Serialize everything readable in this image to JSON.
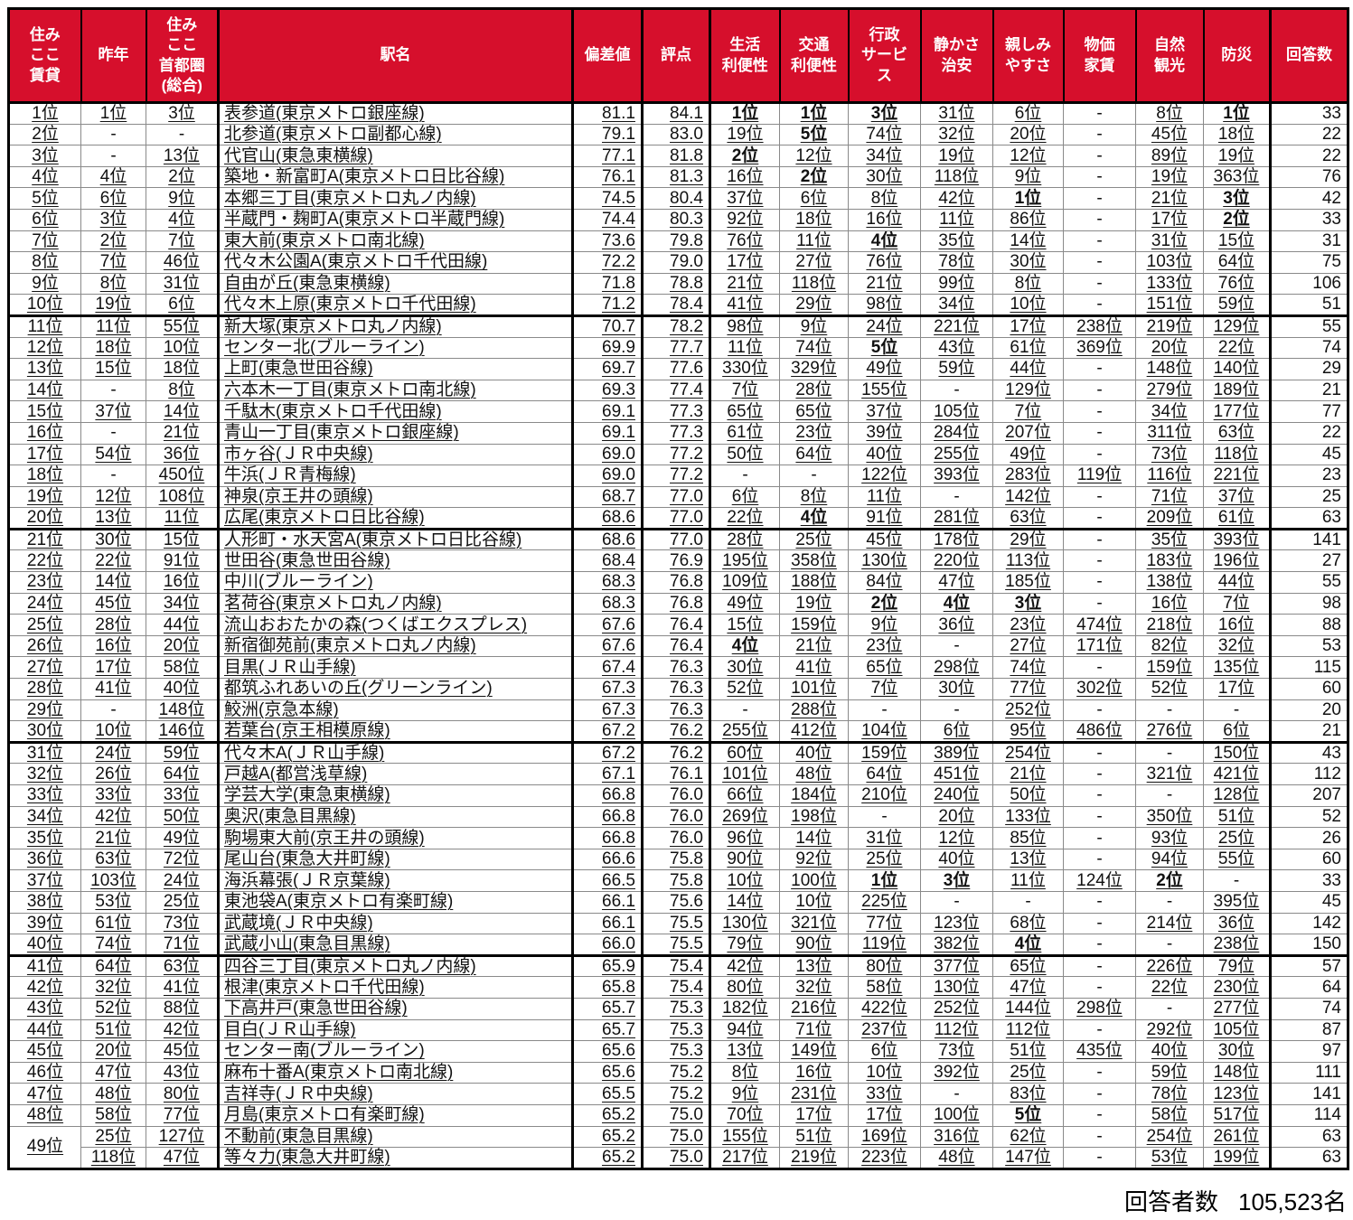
{
  "colors": {
    "header_bg": "#D60F2C",
    "header_text": "#ffffff",
    "thick_border": "#000000",
    "thin_border": "#8a8a8a"
  },
  "footer": {
    "label": "回答者数",
    "value": "105,523名"
  },
  "table": {
    "columns": [
      "住み\nここ\n賃貸",
      "昨年",
      "住み\nここ\n首都圏\n(総合)",
      "駅名",
      "偏差値",
      "評点",
      "生活\n利便性",
      "交通\n利便性",
      "行政\nサービ\nス",
      "静かさ\n治安",
      "親しみ\nやすさ",
      "物価\n家賃",
      "自然\n観光",
      "防災",
      "回答数"
    ],
    "rowspans": {
      "48": 2
    },
    "rows": [
      [
        "1位",
        "1位",
        "3位",
        "表参道(東京メトロ銀座線)",
        "81.1",
        "84.1",
        "1位",
        "1位",
        "3位",
        "31位",
        "6位",
        "-",
        "8位",
        "1位",
        "33"
      ],
      [
        "2位",
        "-",
        "-",
        "北参道(東京メトロ副都心線)",
        "79.1",
        "83.0",
        "19位",
        "5位",
        "74位",
        "32位",
        "20位",
        "-",
        "45位",
        "18位",
        "22"
      ],
      [
        "3位",
        "-",
        "13位",
        "代官山(東急東横線)",
        "77.1",
        "81.8",
        "2位",
        "12位",
        "34位",
        "19位",
        "12位",
        "-",
        "89位",
        "19位",
        "22"
      ],
      [
        "4位",
        "4位",
        "2位",
        "築地・新富町A(東京メトロ日比谷線)",
        "76.1",
        "81.3",
        "16位",
        "2位",
        "30位",
        "118位",
        "9位",
        "-",
        "19位",
        "363位",
        "76"
      ],
      [
        "5位",
        "6位",
        "9位",
        "本郷三丁目(東京メトロ丸ノ内線)",
        "74.5",
        "80.4",
        "37位",
        "6位",
        "8位",
        "42位",
        "1位",
        "-",
        "21位",
        "3位",
        "42"
      ],
      [
        "6位",
        "3位",
        "4位",
        "半蔵門・麹町A(東京メトロ半蔵門線)",
        "74.4",
        "80.3",
        "92位",
        "18位",
        "16位",
        "11位",
        "86位",
        "-",
        "17位",
        "2位",
        "33"
      ],
      [
        "7位",
        "2位",
        "7位",
        "東大前(東京メトロ南北線)",
        "73.6",
        "79.8",
        "76位",
        "11位",
        "4位",
        "35位",
        "14位",
        "-",
        "31位",
        "15位",
        "31"
      ],
      [
        "8位",
        "7位",
        "46位",
        "代々木公園A(東京メトロ千代田線)",
        "72.2",
        "79.0",
        "17位",
        "27位",
        "76位",
        "78位",
        "30位",
        "-",
        "103位",
        "64位",
        "75"
      ],
      [
        "9位",
        "8位",
        "31位",
        "自由が丘(東急東横線)",
        "71.8",
        "78.8",
        "21位",
        "118位",
        "21位",
        "99位",
        "8位",
        "-",
        "133位",
        "76位",
        "106"
      ],
      [
        "10位",
        "19位",
        "6位",
        "代々木上原(東京メトロ千代田線)",
        "71.2",
        "78.4",
        "41位",
        "29位",
        "98位",
        "34位",
        "10位",
        "-",
        "151位",
        "59位",
        "51"
      ],
      [
        "11位",
        "11位",
        "55位",
        "新大塚(東京メトロ丸ノ内線)",
        "70.7",
        "78.2",
        "98位",
        "9位",
        "24位",
        "221位",
        "17位",
        "238位",
        "219位",
        "129位",
        "55"
      ],
      [
        "12位",
        "18位",
        "10位",
        "センター北(ブルーライン)",
        "69.9",
        "77.7",
        "11位",
        "74位",
        "5位",
        "43位",
        "61位",
        "369位",
        "20位",
        "22位",
        "74"
      ],
      [
        "13位",
        "15位",
        "18位",
        "上町(東急世田谷線)",
        "69.7",
        "77.6",
        "330位",
        "329位",
        "49位",
        "59位",
        "44位",
        "-",
        "148位",
        "140位",
        "29"
      ],
      [
        "14位",
        "-",
        "8位",
        "六本木一丁目(東京メトロ南北線)",
        "69.3",
        "77.4",
        "7位",
        "28位",
        "155位",
        "-",
        "129位",
        "-",
        "279位",
        "189位",
        "21"
      ],
      [
        "15位",
        "37位",
        "14位",
        "千駄木(東京メトロ千代田線)",
        "69.1",
        "77.3",
        "65位",
        "65位",
        "37位",
        "105位",
        "7位",
        "-",
        "34位",
        "177位",
        "77"
      ],
      [
        "16位",
        "-",
        "21位",
        "青山一丁目(東京メトロ銀座線)",
        "69.1",
        "77.3",
        "61位",
        "23位",
        "39位",
        "284位",
        "207位",
        "-",
        "311位",
        "63位",
        "22"
      ],
      [
        "17位",
        "54位",
        "36位",
        "市ヶ谷(ＪＲ中央線)",
        "69.0",
        "77.2",
        "50位",
        "64位",
        "40位",
        "255位",
        "49位",
        "-",
        "73位",
        "118位",
        "45"
      ],
      [
        "18位",
        "-",
        "450位",
        "牛浜(ＪＲ青梅線)",
        "69.0",
        "77.2",
        "-",
        "-",
        "122位",
        "393位",
        "283位",
        "119位",
        "116位",
        "221位",
        "23"
      ],
      [
        "19位",
        "12位",
        "108位",
        "神泉(京王井の頭線)",
        "68.7",
        "77.0",
        "6位",
        "8位",
        "11位",
        "-",
        "142位",
        "-",
        "71位",
        "37位",
        "25"
      ],
      [
        "20位",
        "13位",
        "11位",
        "広尾(東京メトロ日比谷線)",
        "68.6",
        "77.0",
        "22位",
        "4位",
        "91位",
        "281位",
        "63位",
        "-",
        "209位",
        "61位",
        "63"
      ],
      [
        "21位",
        "30位",
        "15位",
        "人形町・水天宮A(東京メトロ日比谷線)",
        "68.6",
        "77.0",
        "28位",
        "25位",
        "45位",
        "178位",
        "29位",
        "-",
        "35位",
        "393位",
        "141"
      ],
      [
        "22位",
        "22位",
        "91位",
        "世田谷(東急世田谷線)",
        "68.4",
        "76.9",
        "195位",
        "358位",
        "130位",
        "220位",
        "113位",
        "-",
        "183位",
        "196位",
        "27"
      ],
      [
        "23位",
        "14位",
        "16位",
        "中川(ブルーライン)",
        "68.3",
        "76.8",
        "109位",
        "188位",
        "84位",
        "47位",
        "185位",
        "-",
        "138位",
        "44位",
        "55"
      ],
      [
        "24位",
        "45位",
        "34位",
        "茗荷谷(東京メトロ丸ノ内線)",
        "68.3",
        "76.8",
        "49位",
        "19位",
        "2位",
        "4位",
        "3位",
        "-",
        "16位",
        "7位",
        "98"
      ],
      [
        "25位",
        "28位",
        "44位",
        "流山おおたかの森(つくばエクスプレス)",
        "67.6",
        "76.4",
        "15位",
        "159位",
        "9位",
        "36位",
        "23位",
        "474位",
        "218位",
        "16位",
        "88"
      ],
      [
        "26位",
        "16位",
        "20位",
        "新宿御苑前(東京メトロ丸ノ内線)",
        "67.6",
        "76.4",
        "4位",
        "21位",
        "23位",
        "-",
        "27位",
        "171位",
        "82位",
        "32位",
        "53"
      ],
      [
        "27位",
        "17位",
        "58位",
        "目黒(ＪＲ山手線)",
        "67.4",
        "76.3",
        "30位",
        "41位",
        "65位",
        "298位",
        "74位",
        "-",
        "159位",
        "135位",
        "115"
      ],
      [
        "28位",
        "41位",
        "40位",
        "都筑ふれあいの丘(グリーンライン)",
        "67.3",
        "76.3",
        "52位",
        "101位",
        "7位",
        "30位",
        "77位",
        "302位",
        "52位",
        "17位",
        "60"
      ],
      [
        "29位",
        "-",
        "148位",
        "鮫洲(京急本線)",
        "67.3",
        "76.3",
        "-",
        "288位",
        "-",
        "-",
        "252位",
        "-",
        "-",
        "-",
        "20"
      ],
      [
        "30位",
        "10位",
        "146位",
        "若葉台(京王相模原線)",
        "67.2",
        "76.2",
        "255位",
        "412位",
        "104位",
        "6位",
        "95位",
        "486位",
        "276位",
        "6位",
        "21"
      ],
      [
        "31位",
        "24位",
        "59位",
        "代々木A(ＪＲ山手線)",
        "67.2",
        "76.2",
        "60位",
        "40位",
        "159位",
        "389位",
        "254位",
        "-",
        "-",
        "150位",
        "43"
      ],
      [
        "32位",
        "26位",
        "64位",
        "戸越A(都営浅草線)",
        "67.1",
        "76.1",
        "101位",
        "48位",
        "64位",
        "451位",
        "21位",
        "-",
        "321位",
        "421位",
        "112"
      ],
      [
        "33位",
        "33位",
        "33位",
        "学芸大学(東急東横線)",
        "66.8",
        "76.0",
        "66位",
        "184位",
        "210位",
        "240位",
        "50位",
        "-",
        "-",
        "128位",
        "207"
      ],
      [
        "34位",
        "42位",
        "50位",
        "奥沢(東急目黒線)",
        "66.8",
        "76.0",
        "269位",
        "198位",
        "-",
        "20位",
        "133位",
        "-",
        "350位",
        "51位",
        "52"
      ],
      [
        "35位",
        "21位",
        "49位",
        "駒場東大前(京王井の頭線)",
        "66.8",
        "76.0",
        "96位",
        "14位",
        "31位",
        "12位",
        "85位",
        "-",
        "93位",
        "25位",
        "26"
      ],
      [
        "36位",
        "63位",
        "72位",
        "尾山台(東急大井町線)",
        "66.6",
        "75.8",
        "90位",
        "92位",
        "25位",
        "40位",
        "13位",
        "-",
        "94位",
        "55位",
        "60"
      ],
      [
        "37位",
        "103位",
        "24位",
        "海浜幕張(ＪＲ京葉線)",
        "66.5",
        "75.8",
        "10位",
        "100位",
        "1位",
        "3位",
        "11位",
        "124位",
        "2位",
        "-",
        "33"
      ],
      [
        "38位",
        "53位",
        "25位",
        "東池袋A(東京メトロ有楽町線)",
        "66.1",
        "75.6",
        "14位",
        "10位",
        "225位",
        "-",
        "-",
        "-",
        "-",
        "395位",
        "45"
      ],
      [
        "39位",
        "61位",
        "73位",
        "武蔵境(ＪＲ中央線)",
        "66.1",
        "75.5",
        "130位",
        "321位",
        "77位",
        "123位",
        "68位",
        "-",
        "214位",
        "36位",
        "142"
      ],
      [
        "40位",
        "74位",
        "71位",
        "武蔵小山(東急目黒線)",
        "66.0",
        "75.5",
        "79位",
        "90位",
        "119位",
        "382位",
        "4位",
        "-",
        "-",
        "238位",
        "150"
      ],
      [
        "41位",
        "64位",
        "63位",
        "四谷三丁目(東京メトロ丸ノ内線)",
        "65.9",
        "75.4",
        "42位",
        "13位",
        "80位",
        "377位",
        "65位",
        "-",
        "226位",
        "79位",
        "57"
      ],
      [
        "42位",
        "32位",
        "41位",
        "根津(東京メトロ千代田線)",
        "65.8",
        "75.4",
        "80位",
        "32位",
        "58位",
        "130位",
        "47位",
        "-",
        "22位",
        "230位",
        "64"
      ],
      [
        "43位",
        "52位",
        "88位",
        "下高井戸(東急世田谷線)",
        "65.7",
        "75.3",
        "182位",
        "216位",
        "422位",
        "252位",
        "144位",
        "298位",
        "-",
        "277位",
        "74"
      ],
      [
        "44位",
        "51位",
        "42位",
        "目白(ＪＲ山手線)",
        "65.7",
        "75.3",
        "94位",
        "71位",
        "237位",
        "112位",
        "112位",
        "-",
        "292位",
        "105位",
        "87"
      ],
      [
        "45位",
        "20位",
        "45位",
        "センター南(ブルーライン)",
        "65.6",
        "75.3",
        "13位",
        "149位",
        "6位",
        "73位",
        "51位",
        "435位",
        "40位",
        "30位",
        "97"
      ],
      [
        "46位",
        "47位",
        "43位",
        "麻布十番A(東京メトロ南北線)",
        "65.6",
        "75.2",
        "8位",
        "16位",
        "10位",
        "392位",
        "25位",
        "-",
        "59位",
        "148位",
        "111"
      ],
      [
        "47位",
        "48位",
        "80位",
        "吉祥寺(ＪＲ中央線)",
        "65.5",
        "75.2",
        "9位",
        "231位",
        "33位",
        "-",
        "83位",
        "-",
        "78位",
        "123位",
        "141"
      ],
      [
        "48位",
        "58位",
        "77位",
        "月島(東京メトロ有楽町線)",
        "65.2",
        "75.0",
        "70位",
        "17位",
        "17位",
        "100位",
        "5位",
        "-",
        "58位",
        "517位",
        "114"
      ],
      [
        "49位",
        "25位",
        "127位",
        "不動前(東急目黒線)",
        "65.2",
        "75.0",
        "155位",
        "51位",
        "169位",
        "316位",
        "62位",
        "-",
        "254位",
        "261位",
        "63"
      ],
      [
        "118位",
        "47位",
        "等々力(東急大井町線)",
        "65.2",
        "75.0",
        "217位",
        "219位",
        "223位",
        "48位",
        "147位",
        "-",
        "53位",
        "199位",
        "63"
      ]
    ]
  }
}
